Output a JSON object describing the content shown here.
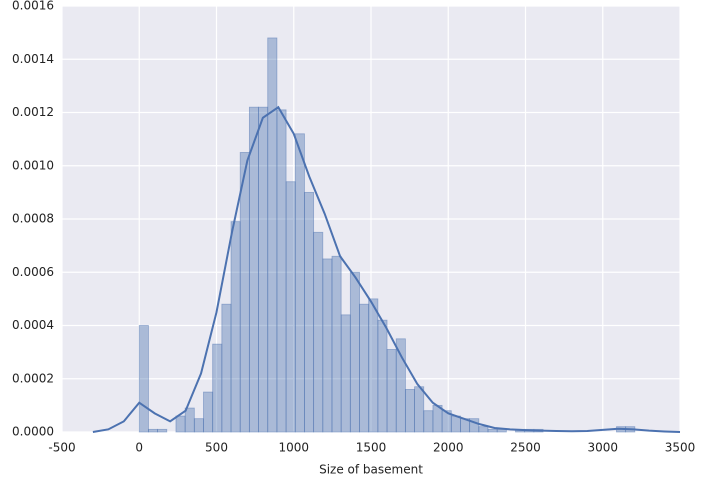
{
  "chart_data": {
    "type": "histogram",
    "xlabel": "Size of basement",
    "color": "#4c72b0",
    "grid": true,
    "xlim": [
      -500,
      3500
    ],
    "ylim": [
      0,
      0.0016
    ],
    "xticks": [
      -500,
      0,
      500,
      1000,
      1500,
      2000,
      2500,
      3000,
      3500
    ],
    "yticks": [
      {
        "value": 0,
        "label": "0.0000"
      },
      {
        "value": 0.0002,
        "label": "0.0002"
      },
      {
        "value": 0.0004,
        "label": "0.0004"
      },
      {
        "value": 0.0006,
        "label": "0.0006"
      },
      {
        "value": 0.0008,
        "label": "0.0008"
      },
      {
        "value": 0.001,
        "label": "0.0010"
      },
      {
        "value": 0.0012,
        "label": "0.0012"
      },
      {
        "value": 0.0014,
        "label": "0.0014"
      },
      {
        "value": 0.0016,
        "label": "0.0016"
      }
    ],
    "bins": [
      0,
      59.4,
      118.8,
      178.2,
      237.6,
      297,
      356.4,
      415.8,
      475.2,
      534.6,
      594,
      653.4,
      712.8,
      772.2,
      831.6,
      891,
      950.4,
      1009.8,
      1069.2,
      1128.6,
      1188,
      1247.4,
      1306.8,
      1366.2,
      1425.6,
      1485,
      1544.4,
      1603.8,
      1663.2,
      1722.6,
      1782,
      1841.4,
      1900.8,
      1960.2,
      2019.6,
      2079,
      2138.4,
      2197.8,
      2257.2,
      2316.6,
      2376,
      2435.4,
      2494.8,
      2554.2,
      2613.6,
      2673,
      2732.4,
      2791.8,
      2851.2,
      2910.6,
      2970,
      3029.4,
      3088.8,
      3148.2,
      3207.6
    ],
    "values": [
      0.0004,
      1e-05,
      1e-05,
      0,
      6e-05,
      9e-05,
      5e-05,
      0.00015,
      0.00033,
      0.00048,
      0.00079,
      0.00105,
      0.00122,
      0.00122,
      0.00148,
      0.00121,
      0.00094,
      0.00112,
      0.0009,
      0.00075,
      0.00065,
      0.00066,
      0.00044,
      0.0006,
      0.00048,
      0.0005,
      0.00042,
      0.00031,
      0.00035,
      0.00016,
      0.00017,
      8e-05,
      0.0001,
      8e-05,
      6e-05,
      5e-05,
      5e-05,
      2e-05,
      1e-05,
      1e-05,
      0,
      1e-05,
      1e-05,
      1e-05,
      0,
      0,
      0,
      0,
      0,
      0,
      0,
      0,
      2e-05,
      2e-05
    ],
    "kde": {
      "color": "#4c72b0",
      "x": [
        -300,
        -200,
        -100,
        0,
        100,
        200,
        300,
        400,
        500,
        600,
        700,
        800,
        900,
        1000,
        1100,
        1200,
        1300,
        1400,
        1500,
        1600,
        1700,
        1800,
        1900,
        2000,
        2100,
        2200,
        2300,
        2400,
        2500,
        2600,
        2700,
        2800,
        2900,
        3000,
        3100,
        3200,
        3300,
        3400,
        3500
      ],
      "values": [
        0,
        1e-05,
        4e-05,
        0.00011,
        7e-05,
        4e-05,
        8e-05,
        0.00022,
        0.00045,
        0.00075,
        0.00102,
        0.00118,
        0.00122,
        0.00112,
        0.00096,
        0.00082,
        0.00066,
        0.00058,
        0.00049,
        0.00039,
        0.00028,
        0.00018,
        0.00011,
        7e-05,
        5e-05,
        3e-05,
        1.5e-05,
        1e-05,
        7e-06,
        5e-06,
        4e-06,
        3e-06,
        4e-06,
        8e-06,
        1.2e-05,
        1e-05,
        5e-06,
        2e-06,
        0
      ]
    }
  }
}
